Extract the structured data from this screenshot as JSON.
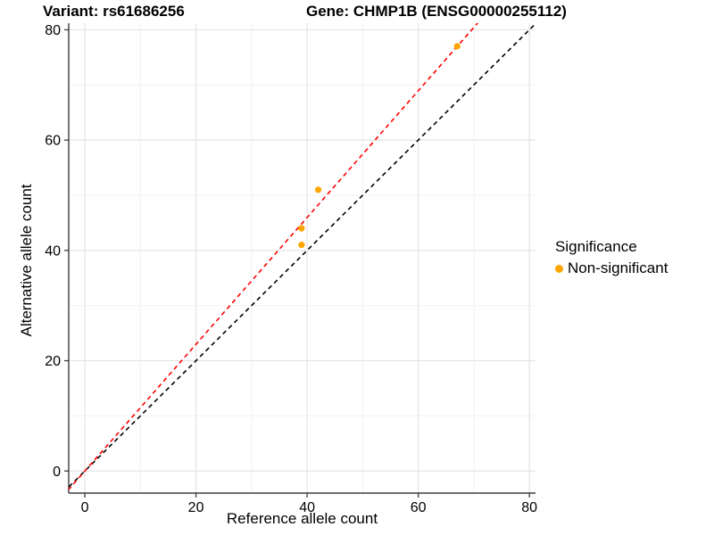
{
  "chart_data": {
    "type": "scatter",
    "title_left": "Variant: rs61686256",
    "title_right": "Gene: CHMP1B (ENSG00000255112)",
    "xlabel": "Reference allele count",
    "ylabel": "Alternative allele count",
    "x_ticks": [
      0,
      20,
      40,
      60,
      80
    ],
    "y_ticks": [
      0,
      20,
      40,
      60,
      80
    ],
    "x_range": [
      -2.9,
      81.1
    ],
    "y_range": [
      -4.0,
      81.2
    ],
    "grid": {
      "major": true,
      "minor": true
    },
    "legend_position": "right",
    "points": [
      {
        "x": 39,
        "y": 41
      },
      {
        "x": 39,
        "y": 44
      },
      {
        "x": 42,
        "y": 51
      },
      {
        "x": 67,
        "y": 77
      }
    ],
    "point_color": "#FFA500",
    "lines": [
      {
        "name": "identity-line",
        "slope": 1.0,
        "intercept": 0,
        "color": "#000000",
        "style": "dashed"
      },
      {
        "name": "fit-line",
        "slope": 1.149,
        "intercept": 0,
        "color": "#FF0000",
        "style": "dashed"
      }
    ],
    "legend": {
      "title": "Significance",
      "items": [
        {
          "label": "Non-significant",
          "color": "#FFA500"
        }
      ]
    },
    "colors": {
      "background": "#FFFFFF",
      "grid_major": "#E4E4E4",
      "grid_minor": "#F2F2F2",
      "axis": "#3C3C3C",
      "text": "#000000"
    }
  }
}
